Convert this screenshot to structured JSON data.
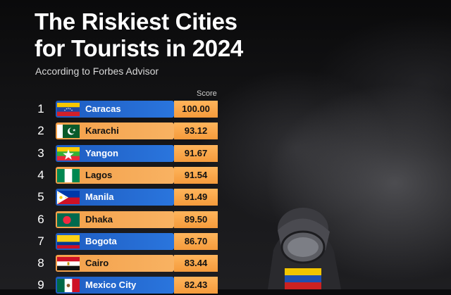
{
  "header": {
    "title_line1": "The Riskiest Cities",
    "title_line2": "for Tourists in 2024",
    "subtitle": "According to Forbes Advisor"
  },
  "chart_data": {
    "type": "bar",
    "title": "The Riskiest Cities for Tourists in 2024",
    "subtitle": "According to Forbes Advisor",
    "value_label": "Score",
    "ranks": [
      "1",
      "2",
      "3",
      "4",
      "5",
      "6",
      "7",
      "8",
      "9"
    ],
    "categories": [
      "Caracas",
      "Karachi",
      "Yangon",
      "Lagos",
      "Manila",
      "Dhaka",
      "Bogota",
      "Cairo",
      "Mexico City"
    ],
    "values": [
      100.0,
      93.12,
      91.67,
      91.54,
      91.49,
      89.5,
      86.7,
      83.44,
      82.43
    ],
    "value_labels": [
      "100.00",
      "93.12",
      "91.67",
      "91.54",
      "91.49",
      "89.50",
      "86.70",
      "83.44",
      "82.43"
    ],
    "flag_icons": [
      "venezuela-flag-icon",
      "pakistan-flag-icon",
      "myanmar-flag-icon",
      "nigeria-flag-icon",
      "philippines-flag-icon",
      "bangladesh-flag-icon",
      "colombia-flag-icon",
      "egypt-flag-icon",
      "mexico-flag-icon"
    ],
    "colors": {
      "bar_blue": "#1f63c7",
      "bar_orange": "#f7a24a",
      "score_bg": "#f8a448",
      "text_on_blue": "#ffffff",
      "text_on_orange": "#111111"
    }
  }
}
